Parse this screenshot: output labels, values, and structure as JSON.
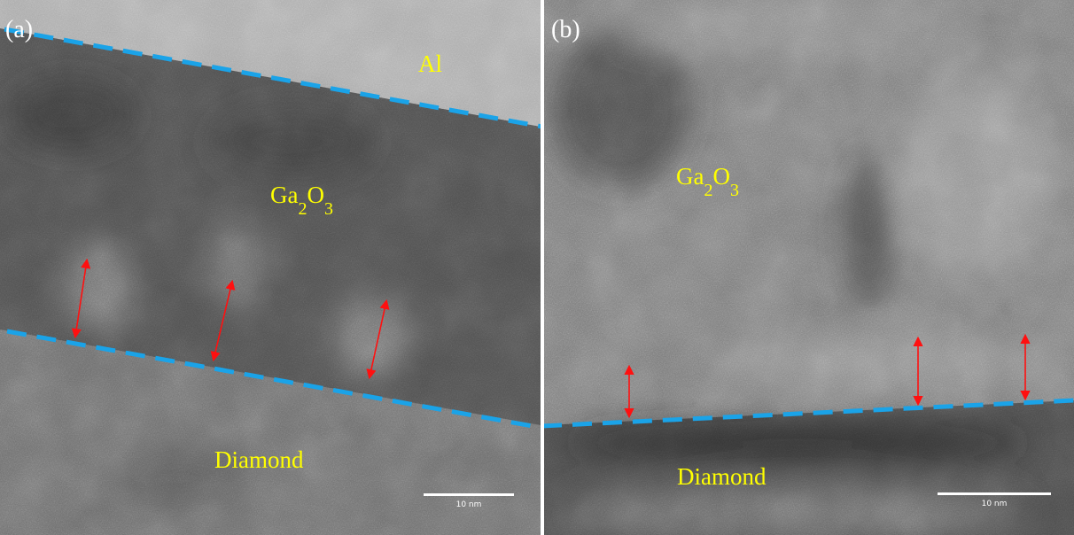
{
  "panels": [
    {
      "tag": "(a)",
      "top_layer": "Al",
      "film": [
        "Ga",
        "2",
        "O",
        "3"
      ],
      "substrate": "Diamond",
      "scale_bar": "10 nm"
    },
    {
      "tag": "(b)",
      "film": [
        "Ga",
        "2",
        "O",
        "3"
      ],
      "substrate": "Diamond",
      "scale_bar": "10 nm"
    }
  ]
}
